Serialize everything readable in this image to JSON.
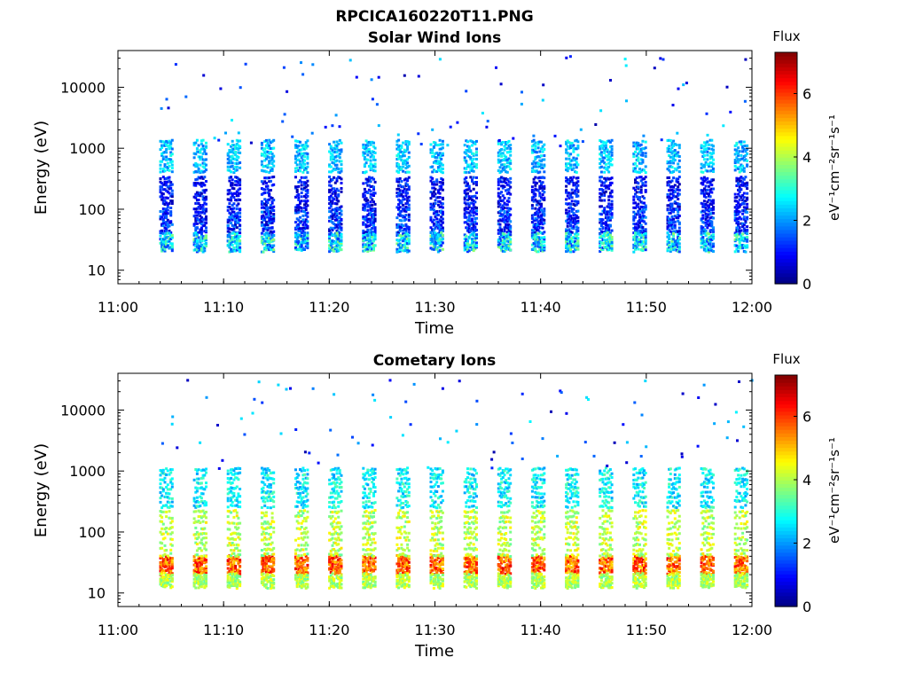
{
  "figure": {
    "title": "RPCICA160220T11.PNG"
  },
  "colormap": "jet",
  "chart_data": [
    {
      "type": "heatmap",
      "title": "Solar Wind Ions",
      "xlabel": "Time",
      "ylabel": "Energy (eV)",
      "x_ticks": [
        "11:00",
        "11:10",
        "11:20",
        "11:30",
        "11:40",
        "11:50",
        "12:00"
      ],
      "xlim_minutes": [
        0,
        60
      ],
      "y_scale": "log",
      "ylim": [
        6,
        40000
      ],
      "y_ticks": [
        10,
        100,
        1000,
        10000
      ],
      "y_tick_labels": [
        "10",
        "100",
        "1000",
        "10000"
      ],
      "colorbar": {
        "title": "Flux",
        "label": "eV⁻¹cm⁻²sr⁻¹s⁻¹",
        "range": [
          0,
          7.3
        ],
        "ticks": [
          0,
          2,
          4,
          6
        ],
        "tick_labels": [
          "0",
          "2",
          "4",
          "6"
        ]
      },
      "sweep_start_minutes": [
        3.9,
        7.1,
        10.3,
        13.5,
        16.7,
        19.9,
        23.1,
        26.3,
        29.5,
        32.7,
        35.9,
        39.1,
        42.3,
        45.5,
        48.7,
        51.9,
        55.1,
        58.3
      ],
      "bands": [
        {
          "energy_range": [
            100,
            350
          ],
          "flux_range": [
            0.3,
            1.6
          ]
        },
        {
          "energy_range": [
            40,
            100
          ],
          "flux_range": [
            0.4,
            2.0
          ]
        },
        {
          "energy_range": [
            20,
            40
          ],
          "flux_range": [
            1.2,
            3.8
          ]
        },
        {
          "energy_range": [
            400,
            1400
          ],
          "flux_range": [
            1.6,
            3.0
          ]
        }
      ]
    },
    {
      "type": "heatmap",
      "title": "Cometary Ions",
      "xlabel": "Time",
      "ylabel": "Energy (eV)",
      "x_ticks": [
        "11:00",
        "11:10",
        "11:20",
        "11:30",
        "11:40",
        "11:50",
        "12:00"
      ],
      "xlim_minutes": [
        0,
        60
      ],
      "y_scale": "log",
      "ylim": [
        6,
        40000
      ],
      "y_ticks": [
        10,
        100,
        1000,
        10000
      ],
      "y_tick_labels": [
        "10",
        "100",
        "1000",
        "10000"
      ],
      "colorbar": {
        "title": "Flux",
        "label": "eV⁻¹cm⁻²sr⁻¹s⁻¹",
        "range": [
          0,
          7.3
        ],
        "ticks": [
          0,
          2,
          4,
          6
        ],
        "tick_labels": [
          "0",
          "2",
          "4",
          "6"
        ]
      },
      "sweep_start_minutes": [
        3.9,
        7.1,
        10.3,
        13.5,
        16.7,
        19.9,
        23.1,
        26.3,
        29.5,
        32.7,
        35.9,
        39.1,
        42.3,
        45.5,
        48.7,
        51.9,
        55.1,
        58.3
      ],
      "bands": [
        {
          "energy_range": [
            20,
            40
          ],
          "flux_range": [
            4.8,
            6.6
          ]
        },
        {
          "energy_range": [
            12,
            20
          ],
          "flux_range": [
            3.4,
            4.6
          ]
        },
        {
          "energy_range": [
            40,
            250
          ],
          "flux_range": [
            3.4,
            4.8
          ]
        },
        {
          "energy_range": [
            250,
            1200
          ],
          "flux_range": [
            2.0,
            3.4
          ]
        }
      ]
    }
  ]
}
